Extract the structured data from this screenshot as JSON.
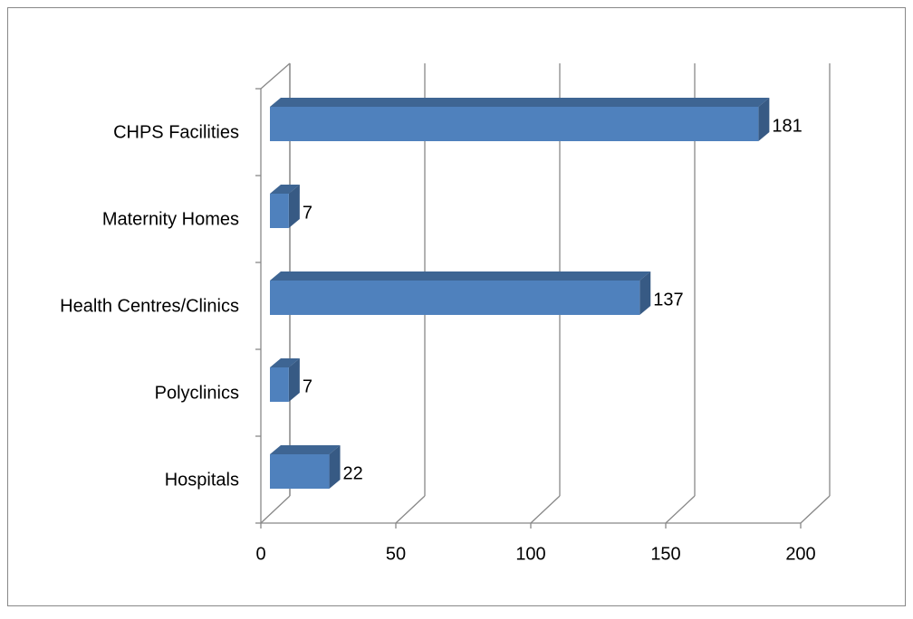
{
  "chart_data": {
    "type": "bar3d_horizontal",
    "categories": [
      "Hospitals",
      "Polyclinics",
      "Health Centres/Clinics",
      "Maternity Homes",
      "CHPS Facilities"
    ],
    "values": [
      22,
      7,
      137,
      7,
      181
    ],
    "color": "#4f81bd",
    "xlim": [
      0,
      200
    ],
    "xticks": [
      0,
      50,
      100,
      150,
      200
    ],
    "grid": true
  }
}
